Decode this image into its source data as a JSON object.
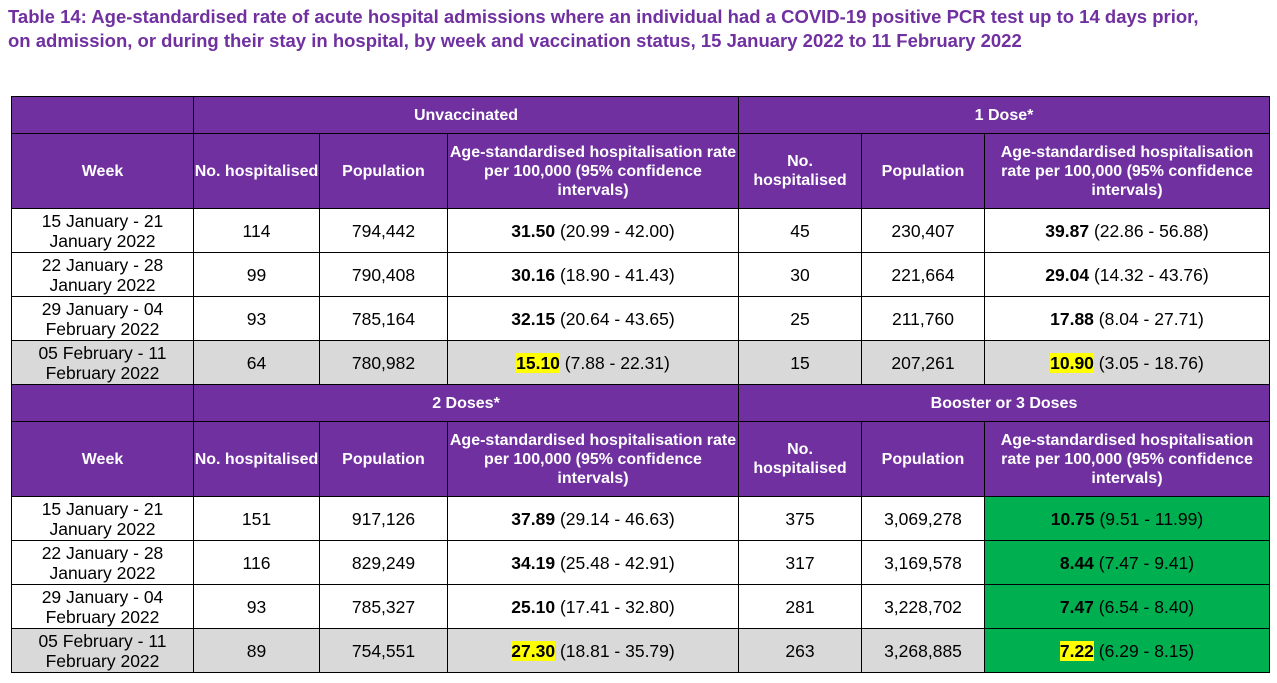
{
  "title": "Table 14: Age-standardised rate of acute hospital admissions where an individual had a COVID-19 positive PCR test up to 14 days prior, on admission, or during their stay in hospital, by week and vaccination status, 15 January 2022 to 11 February 2022",
  "column_headers": {
    "week": "Week",
    "hospitalised": "No. hospitalised",
    "population": "Population",
    "rate": "Age-standardised hospitalisation rate per 100,000 (95% confidence intervals)"
  },
  "colors": {
    "header_bg": "#7030a0",
    "last_row_bg": "#d9d9d9",
    "highlight_yellow": "#ffff00",
    "highlight_green": "#00b050"
  },
  "sections": [
    {
      "groups": [
        {
          "name": "Unvaccinated",
          "rows": [
            {
              "week": "15 January - 21 January 2022",
              "hospitalised": "114",
              "population": "794,442",
              "rate": "31.50",
              "ci": "(20.99 - 42.00)"
            },
            {
              "week": "22 January - 28 January 2022",
              "hospitalised": "99",
              "population": "790,408",
              "rate": "30.16",
              "ci": "(18.90 - 41.43)"
            },
            {
              "week": "29 January - 04 February 2022",
              "hospitalised": "93",
              "population": "785,164",
              "rate": "32.15",
              "ci": "(20.64 - 43.65)"
            },
            {
              "week": "05 February - 11 February 2022",
              "hospitalised": "64",
              "population": "780,982",
              "rate": "15.10",
              "ci": "(7.88 - 22.31)"
            }
          ]
        },
        {
          "name": "1 Dose*",
          "rows": [
            {
              "hospitalised": "45",
              "population": "230,407",
              "rate": "39.87",
              "ci": "(22.86 - 56.88)"
            },
            {
              "hospitalised": "30",
              "population": "221,664",
              "rate": "29.04",
              "ci": "(14.32 - 43.76)"
            },
            {
              "hospitalised": "25",
              "population": "211,760",
              "rate": "17.88",
              "ci": "(8.04 - 27.71)"
            },
            {
              "hospitalised": "15",
              "population": "207,261",
              "rate": "10.90",
              "ci": "(3.05 - 18.76)"
            }
          ]
        }
      ]
    },
    {
      "groups": [
        {
          "name": "2 Doses*",
          "rows": [
            {
              "week": "15 January - 21 January 2022",
              "hospitalised": "151",
              "population": "917,126",
              "rate": "37.89",
              "ci": "(29.14 - 46.63)"
            },
            {
              "week": "22 January - 28 January 2022",
              "hospitalised": "116",
              "population": "829,249",
              "rate": "34.19",
              "ci": "(25.48 - 42.91)"
            },
            {
              "week": "29 January - 04 February 2022",
              "hospitalised": "93",
              "population": "785,327",
              "rate": "25.10",
              "ci": "(17.41 - 32.80)"
            },
            {
              "week": "05 February - 11 February 2022",
              "hospitalised": "89",
              "population": "754,551",
              "rate": "27.30",
              "ci": "(18.81 - 35.79)"
            }
          ]
        },
        {
          "name": "Booster or 3 Doses",
          "rows": [
            {
              "hospitalised": "375",
              "population": "3,069,278",
              "rate": "10.75",
              "ci": "(9.51 - 11.99)"
            },
            {
              "hospitalised": "317",
              "population": "3,169,578",
              "rate": "8.44",
              "ci": "(7.47 - 9.41)"
            },
            {
              "hospitalised": "281",
              "population": "3,228,702",
              "rate": "7.47",
              "ci": "(6.54 - 8.40)"
            },
            {
              "hospitalised": "263",
              "population": "3,268,885",
              "rate": "7.22",
              "ci": "(6.29 - 8.15)"
            }
          ]
        }
      ]
    }
  ]
}
